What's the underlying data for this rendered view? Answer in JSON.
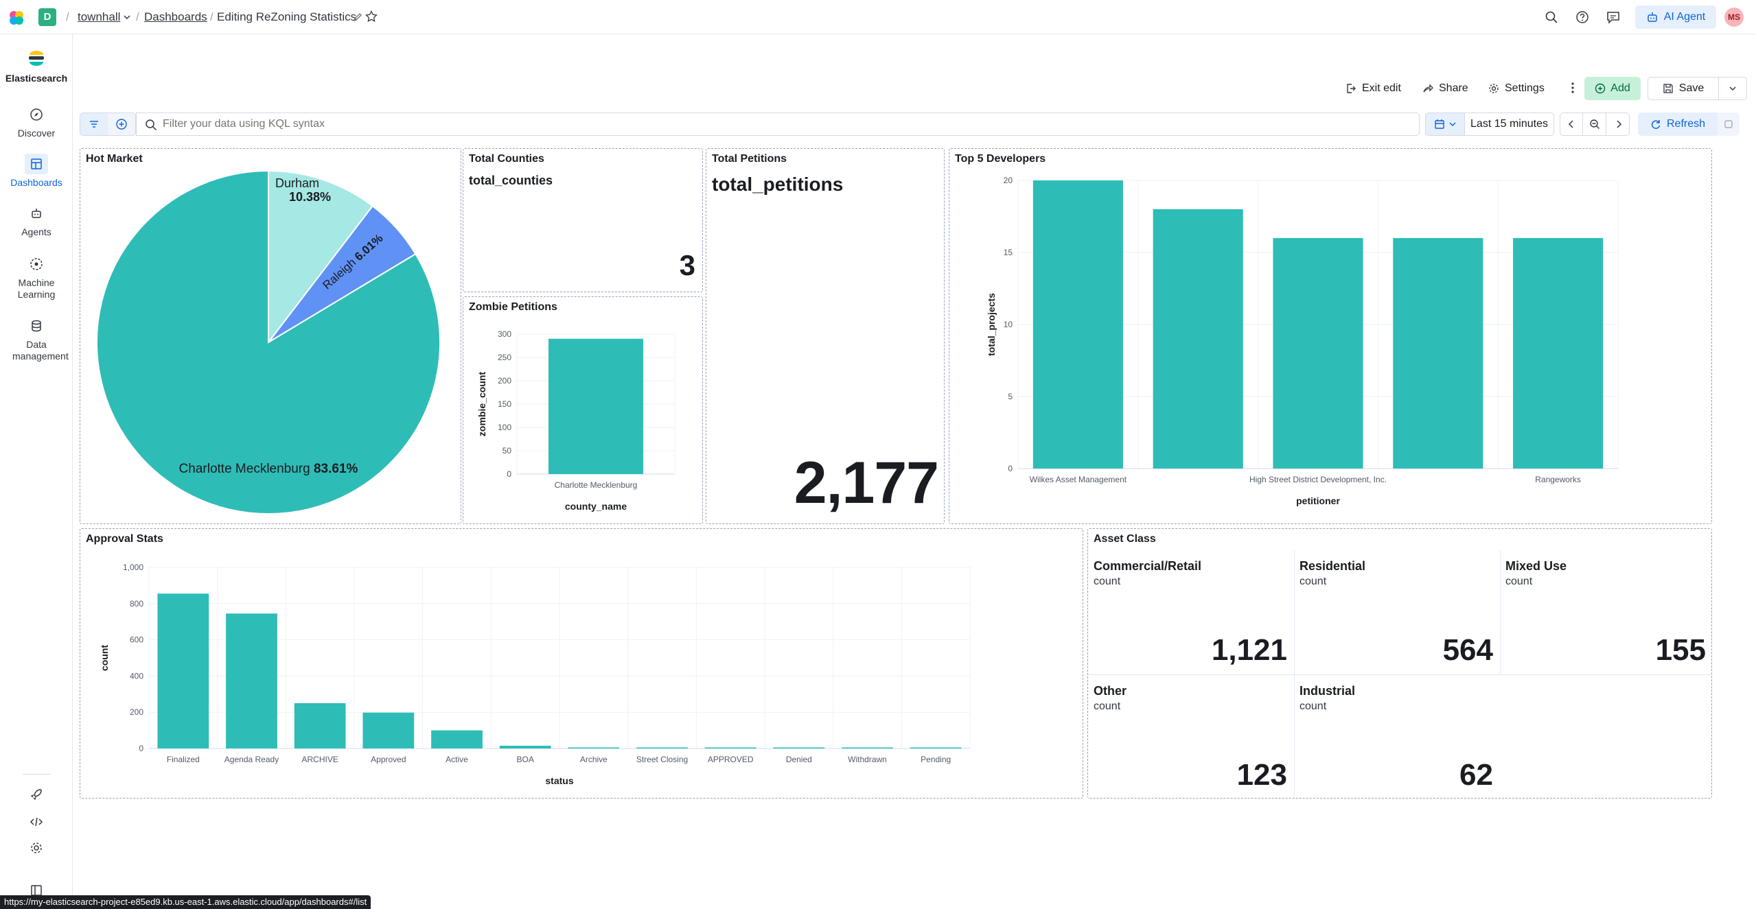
{
  "header": {
    "space_letter": "D",
    "breadcrumbs": [
      "townhall",
      "Dashboards",
      "Editing ReZoning Statistics"
    ],
    "ai_agent_label": "AI Agent",
    "avatar_initials": "MS"
  },
  "sidebar": {
    "brand": "Elasticsearch",
    "items": [
      {
        "label": "Discover",
        "icon": "compass-icon"
      },
      {
        "label": "Dashboards",
        "icon": "dashboard-icon"
      },
      {
        "label": "Agents",
        "icon": "robot-icon"
      },
      {
        "label": "Machine Learning",
        "icon": "ml-icon"
      },
      {
        "label": "Data management",
        "icon": "database-icon"
      }
    ]
  },
  "toolbar": {
    "exit_edit": "Exit edit",
    "share": "Share",
    "settings": "Settings",
    "add": "Add",
    "save": "Save"
  },
  "query": {
    "placeholder": "Filter your data using KQL syntax",
    "time_range": "Last 15 minutes",
    "refresh": "Refresh"
  },
  "panels": {
    "hot_market": {
      "title": "Hot Market"
    },
    "total_counties": {
      "title": "Total Counties",
      "metric_label": "total_counties",
      "value": "3"
    },
    "zombie_petitions": {
      "title": "Zombie Petitions"
    },
    "total_petitions": {
      "title": "Total Petitions",
      "metric_label": "total_petitions",
      "value": "2,177"
    },
    "top_developers": {
      "title": "Top 5 Developers"
    },
    "approval_stats": {
      "title": "Approval Stats"
    },
    "asset_class": {
      "title": "Asset Class",
      "cells": [
        {
          "name": "Commercial/Retail",
          "sub": "count",
          "value": "1,121"
        },
        {
          "name": "Residential",
          "sub": "count",
          "value": "564"
        },
        {
          "name": "Mixed Use",
          "sub": "count",
          "value": "155"
        },
        {
          "name": "Other",
          "sub": "count",
          "value": "123"
        },
        {
          "name": "Industrial",
          "sub": "count",
          "value": "62"
        }
      ]
    }
  },
  "status_url": "https://my-elasticsearch-project-e85ed9.kb.us-east-1.aws.elastic.cloud/app/dashboards#/list",
  "colors": {
    "teal": "#2ebcb7",
    "light_teal": "#a6e8e4",
    "blue": "#6092f5",
    "accent": "#0b64dd"
  },
  "chart_data": [
    {
      "type": "pie",
      "labels": [
        "Charlotte Mecklenburg",
        "Durham",
        "Raleigh"
      ],
      "percent_labels": [
        "83.61%",
        "10.38%",
        "6.01%"
      ],
      "values": [
        83.61,
        10.38,
        6.01
      ]
    },
    {
      "type": "bar",
      "categories": [
        "Charlotte Mecklenburg"
      ],
      "values": [
        290
      ],
      "xlabel": "county_name",
      "ylabel": "zombie_count",
      "ylim": [
        0,
        300
      ],
      "yticks": [
        "0",
        "50",
        "100",
        "150",
        "200",
        "250",
        "300"
      ]
    },
    {
      "type": "bar",
      "categories": [
        "Wilkes Asset Management",
        "",
        "High Street District Development, Inc.",
        "",
        "Rangeworks"
      ],
      "values": [
        20,
        18,
        16,
        16,
        16
      ],
      "xlabel": "petitioner",
      "ylabel": "total_projects",
      "ylim": [
        0,
        20
      ],
      "yticks": [
        "0",
        "5",
        "10",
        "15",
        "20"
      ]
    },
    {
      "type": "bar",
      "categories": [
        "Finalized",
        "Agenda Ready",
        "ARCHIVE",
        "Approved",
        "Active",
        "BOA",
        "Archive",
        "Street Closing",
        "APPROVED",
        "Denied",
        "Withdrawn",
        "Pending"
      ],
      "values": [
        855,
        745,
        250,
        198,
        100,
        15,
        3,
        3,
        3,
        2,
        2,
        2
      ],
      "xlabel": "status",
      "ylabel": "count",
      "ylim": [
        0,
        1000
      ],
      "yticks": [
        "0",
        "200",
        "400",
        "600",
        "800",
        "1,000"
      ]
    }
  ]
}
